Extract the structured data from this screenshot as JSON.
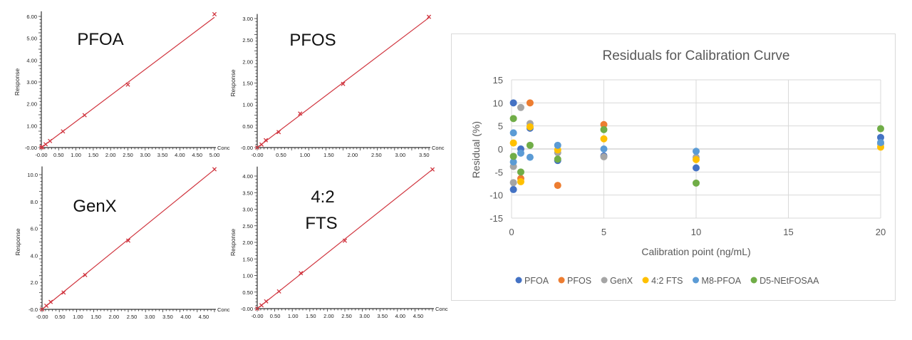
{
  "chart_data": [
    {
      "type": "line",
      "title": "PFOA",
      "xlabel": "Conc",
      "ylabel": "Response",
      "xlim": [
        0,
        5.0
      ],
      "ylim": [
        0,
        6.0
      ],
      "xticks": [
        "-0.00",
        "0.50",
        "1.00",
        "1.50",
        "2.00",
        "2.50",
        "3.00",
        "3.50",
        "4.00",
        "4.50",
        "5.00"
      ],
      "yticks": [
        "-0.00",
        "1.00",
        "2.00",
        "3.00",
        "4.00",
        "5.00",
        "6.00"
      ],
      "x": [
        0.0,
        0.025,
        0.125,
        0.25,
        0.625,
        1.25,
        2.5,
        5.0
      ],
      "y": [
        0.0,
        0.03,
        0.15,
        0.3,
        0.74,
        1.48,
        2.88,
        6.1
      ],
      "fit_line": [
        [
          0,
          0
        ],
        [
          5.0,
          5.96
        ]
      ],
      "color": "#d0343e"
    },
    {
      "type": "line",
      "title": "PFOS",
      "xlabel": "Conc",
      "ylabel": "Response",
      "xlim": [
        0,
        3.6
      ],
      "ylim": [
        0,
        3.0
      ],
      "xticks": [
        "-0.00",
        "0.50",
        "1.00",
        "1.50",
        "2.00",
        "2.50",
        "3.00",
        "3.50"
      ],
      "yticks": [
        "-0.00",
        "0.50",
        "1.00",
        "1.50",
        "2.00",
        "2.50",
        "3.00"
      ],
      "x": [
        0.0,
        0.09,
        0.18,
        0.45,
        0.9,
        1.8,
        3.6
      ],
      "y": [
        0.0,
        0.07,
        0.17,
        0.36,
        0.79,
        1.48,
        3.04
      ],
      "fit_line": [
        [
          0,
          0
        ],
        [
          3.6,
          3.02
        ]
      ],
      "color": "#d0343e"
    },
    {
      "type": "line",
      "title": "GenX",
      "xlabel": "Conc",
      "ylabel": "Response",
      "xlim": [
        0,
        4.8
      ],
      "ylim": [
        0,
        10.0
      ],
      "xticks": [
        "-0.00",
        "0.50",
        "1.00",
        "1.50",
        "2.00",
        "2.50",
        "3.00",
        "3.50",
        "4.00",
        "4.50"
      ],
      "yticks": [
        "-0.0",
        "2.0",
        "4.0",
        "6.0",
        "8.0",
        "10.0"
      ],
      "x": [
        0.0,
        0.12,
        0.24,
        0.6,
        1.2,
        2.4,
        4.8
      ],
      "y": [
        0.0,
        0.27,
        0.55,
        1.25,
        2.55,
        5.1,
        10.4
      ],
      "fit_line": [
        [
          0,
          0
        ],
        [
          4.8,
          10.38
        ]
      ],
      "color": "#d0343e"
    },
    {
      "type": "line",
      "title": "4:2 FTS",
      "xlabel": "Conc",
      "ylabel": "Response",
      "xlim": [
        0,
        4.9
      ],
      "ylim": [
        0,
        4.0
      ],
      "xticks": [
        "-0.00",
        "0.50",
        "1.00",
        "1.50",
        "2.00",
        "2.50",
        "3.00",
        "3.50",
        "4.00",
        "4.50"
      ],
      "yticks": [
        "-0.00",
        "0.50",
        "1.00",
        "1.50",
        "2.00",
        "2.50",
        "3.00",
        "3.50",
        "4.00"
      ],
      "x": [
        0.0,
        0.12,
        0.25,
        0.61,
        1.22,
        2.45,
        4.9
      ],
      "y": [
        0.0,
        0.1,
        0.22,
        0.52,
        1.07,
        2.05,
        4.2
      ],
      "fit_line": [
        [
          0,
          0
        ],
        [
          4.9,
          4.2
        ]
      ],
      "color": "#d0343e"
    },
    {
      "type": "scatter",
      "title": "Residuals for Calibration Curve",
      "xlabel": "Calibration point (ng/mL)",
      "ylabel": "Residual (%)",
      "xlim": [
        0,
        20
      ],
      "ylim": [
        -15,
        15
      ],
      "xticks": [
        "0",
        "5",
        "10",
        "15",
        "20"
      ],
      "yticks": [
        "15",
        "10",
        "5",
        "0",
        "-5",
        "-10",
        "-15"
      ],
      "grid": true,
      "legend_position": "bottom",
      "series": [
        {
          "name": "PFOA",
          "color": "#4472c4",
          "points": [
            [
              0.1,
              10.0
            ],
            [
              0.1,
              -8.8
            ],
            [
              0.5,
              0.0
            ],
            [
              1,
              4.5
            ],
            [
              2.5,
              -2.5
            ],
            [
              5,
              -1.5
            ],
            [
              10,
              -4.1
            ],
            [
              20,
              2.5
            ]
          ]
        },
        {
          "name": "PFOS",
          "color": "#ed7d31",
          "points": [
            [
              1,
              10.0
            ],
            [
              0.5,
              -6.4
            ],
            [
              2.5,
              -7.9
            ],
            [
              5,
              5.3
            ]
          ]
        },
        {
          "name": "GenX",
          "color": "#a5a5a5",
          "points": [
            [
              0.5,
              9.0
            ],
            [
              0.1,
              -3.8
            ],
            [
              0.1,
              -7.3
            ],
            [
              1,
              5.5
            ],
            [
              2.5,
              -0.8
            ],
            [
              5,
              -1.7
            ],
            [
              10,
              -1.8
            ],
            [
              20,
              1.1
            ]
          ]
        },
        {
          "name": "4:2 FTS",
          "color": "#ffc000",
          "points": [
            [
              0.1,
              1.3
            ],
            [
              0.5,
              -7.1
            ],
            [
              1,
              4.8
            ],
            [
              2.5,
              -0.2
            ],
            [
              5,
              2.2
            ],
            [
              10,
              -2.3
            ],
            [
              20,
              0.4
            ]
          ]
        },
        {
          "name": "M8-PFOA",
          "color": "#5b9bd5",
          "points": [
            [
              0.1,
              3.5
            ],
            [
              0.1,
              -2.8
            ],
            [
              0.5,
              -0.9
            ],
            [
              1,
              -1.8
            ],
            [
              2.5,
              0.8
            ],
            [
              5,
              0.0
            ],
            [
              10,
              -0.5
            ],
            [
              20,
              1.4
            ]
          ]
        },
        {
          "name": "D5-NEtFOSAA",
          "color": "#70ad47",
          "points": [
            [
              0.1,
              6.6
            ],
            [
              0.1,
              -1.6
            ],
            [
              0.5,
              -5.0
            ],
            [
              1,
              0.8
            ],
            [
              2.5,
              -2.2
            ],
            [
              5,
              4.2
            ],
            [
              10,
              -7.4
            ],
            [
              20,
              4.4
            ]
          ]
        }
      ]
    }
  ]
}
